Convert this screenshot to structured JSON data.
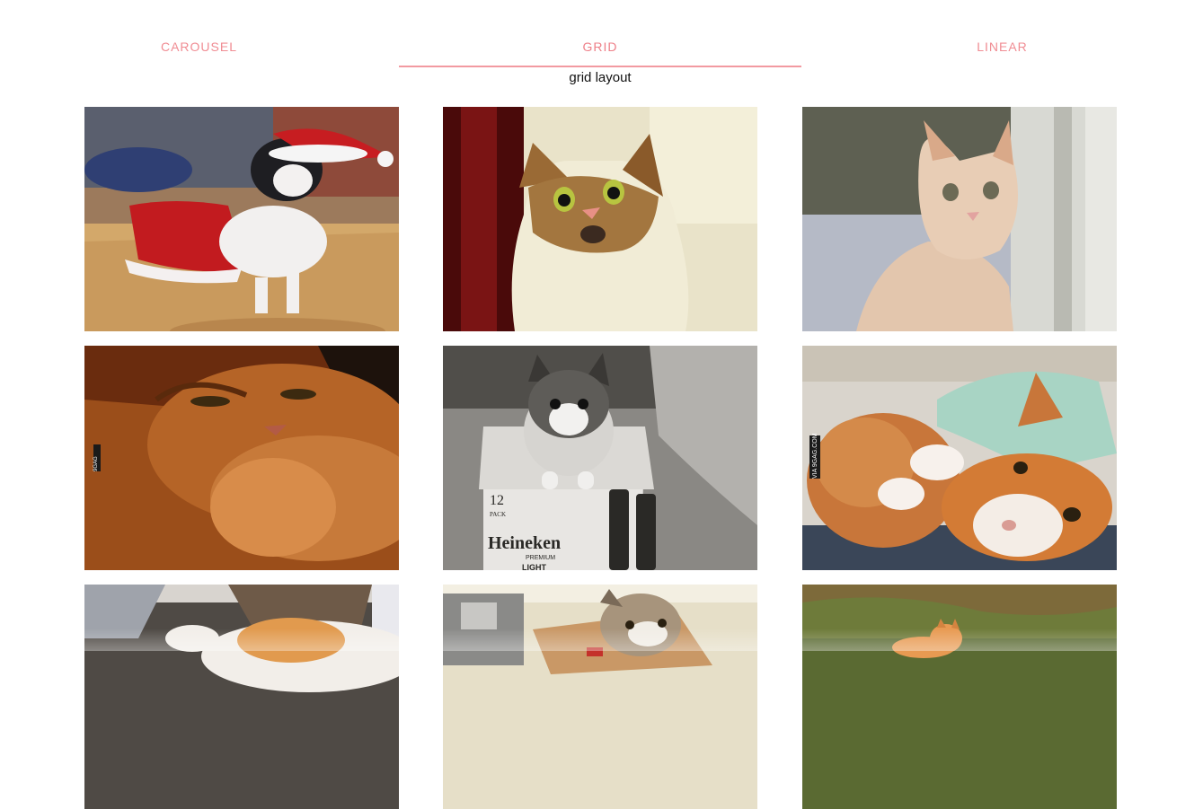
{
  "tabs": [
    {
      "label": "CAROUSEL",
      "active": false
    },
    {
      "label": "GRID",
      "active": true
    },
    {
      "label": "LINEAR",
      "active": false
    }
  ],
  "subtitle": "grid layout",
  "colors": {
    "accent": "#ee7f88",
    "indicator": "#f29aa1",
    "text": "#111111"
  },
  "images": [
    {
      "name": "cat-santa-costume-photo"
    },
    {
      "name": "cat-surprised-photo"
    },
    {
      "name": "cat-peeking-door-photo"
    },
    {
      "name": "cat-orange-closeup-photo",
      "watermark": "9GAG"
    },
    {
      "name": "kitten-heineken-box-photo",
      "box_text": [
        "12",
        "PACK",
        "Heineken",
        "PREMIUM",
        "LIGHT"
      ]
    },
    {
      "name": "cats-cuddling-photo",
      "watermark": "VIA 9GAG.COM"
    },
    {
      "name": "cat-on-bed-photo"
    },
    {
      "name": "cat-in-box-photo"
    },
    {
      "name": "kitten-on-grass-photo"
    }
  ]
}
